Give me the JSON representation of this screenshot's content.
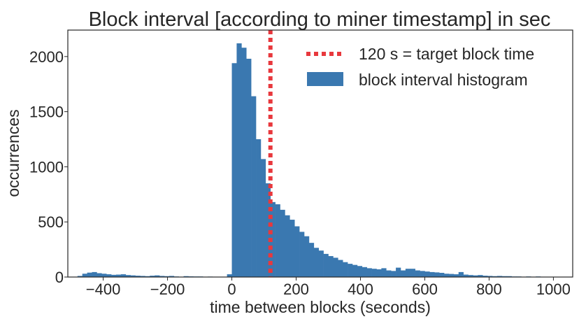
{
  "chart_data": {
    "type": "bar",
    "title": "Block interval [according to miner timestamp] in sec",
    "xlabel": "time between blocks (seconds)",
    "ylabel": "occurrences",
    "xlim": [
      -510,
      1060
    ],
    "ylim": [
      0,
      2240
    ],
    "xticks": [
      -400,
      -200,
      0,
      200,
      400,
      600,
      800,
      1000
    ],
    "xtick_labels": [
      "−400",
      "−200",
      "0",
      "200",
      "400",
      "600",
      "800",
      "1000"
    ],
    "yticks": [
      0,
      500,
      1000,
      1500,
      2000
    ],
    "ytick_labels": [
      "0",
      "500",
      "1000",
      "1500",
      "2000"
    ],
    "grid": false,
    "legend_position": "upper-right",
    "bin_width": 15,
    "series": [
      {
        "name": "block interval histogram",
        "kind": "histogram",
        "color": "#3a78b0",
        "bin_start": -480,
        "bin_width": 15,
        "values": [
          10,
          30,
          40,
          45,
          35,
          30,
          25,
          20,
          22,
          25,
          18,
          15,
          12,
          10,
          8,
          12,
          15,
          10,
          8,
          10,
          5,
          3,
          8,
          6,
          5,
          5,
          3,
          4,
          3,
          3,
          2,
          25,
          1940,
          2120,
          2080,
          1980,
          1640,
          1250,
          1070,
          850,
          680,
          660,
          610,
          560,
          520,
          460,
          410,
          370,
          310,
          265,
          240,
          210,
          190,
          175,
          155,
          135,
          120,
          110,
          100,
          90,
          80,
          75,
          70,
          80,
          60,
          55,
          85,
          60,
          75,
          75,
          60,
          55,
          50,
          45,
          42,
          38,
          30,
          28,
          25,
          45,
          22,
          18,
          15,
          18,
          12,
          10,
          8,
          10,
          8,
          8,
          5,
          5,
          3,
          5,
          3,
          5,
          2,
          3,
          2,
          2
        ]
      },
      {
        "name": "120 s = target block time",
        "kind": "vline",
        "x": 120,
        "color": "#e8383d"
      }
    ]
  }
}
